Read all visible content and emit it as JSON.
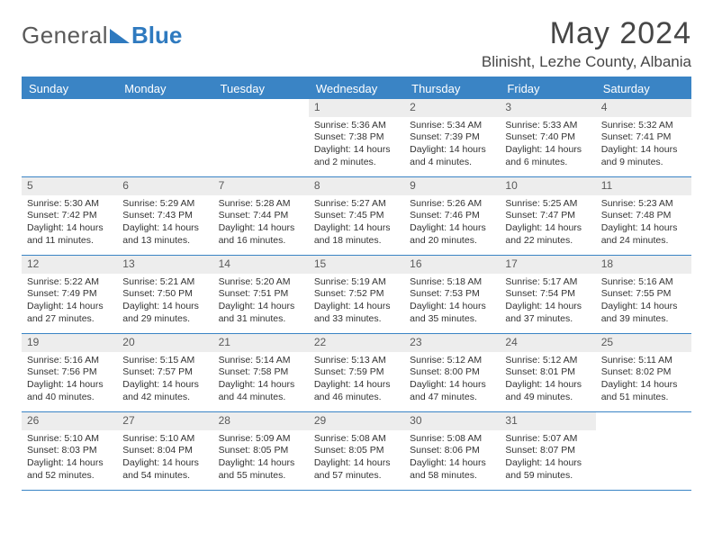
{
  "logo": {
    "text1": "General",
    "text2": "Blue"
  },
  "title": "May 2024",
  "location": "Blinisht, Lezhe County, Albania",
  "colors": {
    "accent": "#3a84c5",
    "headerText": "#ffffff",
    "numBg": "#ededed",
    "text": "#333333"
  },
  "dayNames": [
    "Sunday",
    "Monday",
    "Tuesday",
    "Wednesday",
    "Thursday",
    "Friday",
    "Saturday"
  ],
  "weeks": [
    [
      {
        "blank": true
      },
      {
        "blank": true
      },
      {
        "blank": true
      },
      {
        "n": "1",
        "sr": "5:36 AM",
        "ss": "7:38 PM",
        "dl": "14 hours and 2 minutes."
      },
      {
        "n": "2",
        "sr": "5:34 AM",
        "ss": "7:39 PM",
        "dl": "14 hours and 4 minutes."
      },
      {
        "n": "3",
        "sr": "5:33 AM",
        "ss": "7:40 PM",
        "dl": "14 hours and 6 minutes."
      },
      {
        "n": "4",
        "sr": "5:32 AM",
        "ss": "7:41 PM",
        "dl": "14 hours and 9 minutes."
      }
    ],
    [
      {
        "n": "5",
        "sr": "5:30 AM",
        "ss": "7:42 PM",
        "dl": "14 hours and 11 minutes."
      },
      {
        "n": "6",
        "sr": "5:29 AM",
        "ss": "7:43 PM",
        "dl": "14 hours and 13 minutes."
      },
      {
        "n": "7",
        "sr": "5:28 AM",
        "ss": "7:44 PM",
        "dl": "14 hours and 16 minutes."
      },
      {
        "n": "8",
        "sr": "5:27 AM",
        "ss": "7:45 PM",
        "dl": "14 hours and 18 minutes."
      },
      {
        "n": "9",
        "sr": "5:26 AM",
        "ss": "7:46 PM",
        "dl": "14 hours and 20 minutes."
      },
      {
        "n": "10",
        "sr": "5:25 AM",
        "ss": "7:47 PM",
        "dl": "14 hours and 22 minutes."
      },
      {
        "n": "11",
        "sr": "5:23 AM",
        "ss": "7:48 PM",
        "dl": "14 hours and 24 minutes."
      }
    ],
    [
      {
        "n": "12",
        "sr": "5:22 AM",
        "ss": "7:49 PM",
        "dl": "14 hours and 27 minutes."
      },
      {
        "n": "13",
        "sr": "5:21 AM",
        "ss": "7:50 PM",
        "dl": "14 hours and 29 minutes."
      },
      {
        "n": "14",
        "sr": "5:20 AM",
        "ss": "7:51 PM",
        "dl": "14 hours and 31 minutes."
      },
      {
        "n": "15",
        "sr": "5:19 AM",
        "ss": "7:52 PM",
        "dl": "14 hours and 33 minutes."
      },
      {
        "n": "16",
        "sr": "5:18 AM",
        "ss": "7:53 PM",
        "dl": "14 hours and 35 minutes."
      },
      {
        "n": "17",
        "sr": "5:17 AM",
        "ss": "7:54 PM",
        "dl": "14 hours and 37 minutes."
      },
      {
        "n": "18",
        "sr": "5:16 AM",
        "ss": "7:55 PM",
        "dl": "14 hours and 39 minutes."
      }
    ],
    [
      {
        "n": "19",
        "sr": "5:16 AM",
        "ss": "7:56 PM",
        "dl": "14 hours and 40 minutes."
      },
      {
        "n": "20",
        "sr": "5:15 AM",
        "ss": "7:57 PM",
        "dl": "14 hours and 42 minutes."
      },
      {
        "n": "21",
        "sr": "5:14 AM",
        "ss": "7:58 PM",
        "dl": "14 hours and 44 minutes."
      },
      {
        "n": "22",
        "sr": "5:13 AM",
        "ss": "7:59 PM",
        "dl": "14 hours and 46 minutes."
      },
      {
        "n": "23",
        "sr": "5:12 AM",
        "ss": "8:00 PM",
        "dl": "14 hours and 47 minutes."
      },
      {
        "n": "24",
        "sr": "5:12 AM",
        "ss": "8:01 PM",
        "dl": "14 hours and 49 minutes."
      },
      {
        "n": "25",
        "sr": "5:11 AM",
        "ss": "8:02 PM",
        "dl": "14 hours and 51 minutes."
      }
    ],
    [
      {
        "n": "26",
        "sr": "5:10 AM",
        "ss": "8:03 PM",
        "dl": "14 hours and 52 minutes."
      },
      {
        "n": "27",
        "sr": "5:10 AM",
        "ss": "8:04 PM",
        "dl": "14 hours and 54 minutes."
      },
      {
        "n": "28",
        "sr": "5:09 AM",
        "ss": "8:05 PM",
        "dl": "14 hours and 55 minutes."
      },
      {
        "n": "29",
        "sr": "5:08 AM",
        "ss": "8:05 PM",
        "dl": "14 hours and 57 minutes."
      },
      {
        "n": "30",
        "sr": "5:08 AM",
        "ss": "8:06 PM",
        "dl": "14 hours and 58 minutes."
      },
      {
        "n": "31",
        "sr": "5:07 AM",
        "ss": "8:07 PM",
        "dl": "14 hours and 59 minutes."
      },
      {
        "blank": true
      }
    ]
  ],
  "labels": {
    "sunrise": "Sunrise:",
    "sunset": "Sunset:",
    "daylight": "Daylight:"
  }
}
